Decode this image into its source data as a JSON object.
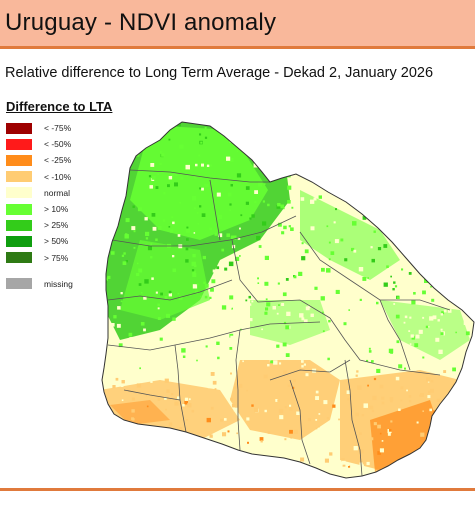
{
  "header": {
    "title": "Uruguay - NDVI anomaly",
    "subtitle": "Relative difference to Long Term Average - Dekad 2, January 2026"
  },
  "legend": {
    "title": "Difference to LTA",
    "items": [
      {
        "label": "< -75%",
        "color": "#9e0000"
      },
      {
        "label": "< -50%",
        "color": "#ff1a1a"
      },
      {
        "label": "< -25%",
        "color": "#ff8c1a"
      },
      {
        "label": "< -10%",
        "color": "#ffcc73"
      },
      {
        "label": "normal",
        "color": "#ffffcc"
      },
      {
        "label": "> 10%",
        "color": "#66ff33"
      },
      {
        "label": "> 25%",
        "color": "#33cc1a"
      },
      {
        "label": "> 50%",
        "color": "#0f9e0f"
      },
      {
        "label": "> 75%",
        "color": "#2e7a14"
      },
      {
        "label": "missing",
        "color": "#a6a6a6"
      }
    ]
  },
  "colors": {
    "accent_bar": "#f9b89b",
    "accent_rule": "#e07a3c",
    "border": "#444444"
  }
}
